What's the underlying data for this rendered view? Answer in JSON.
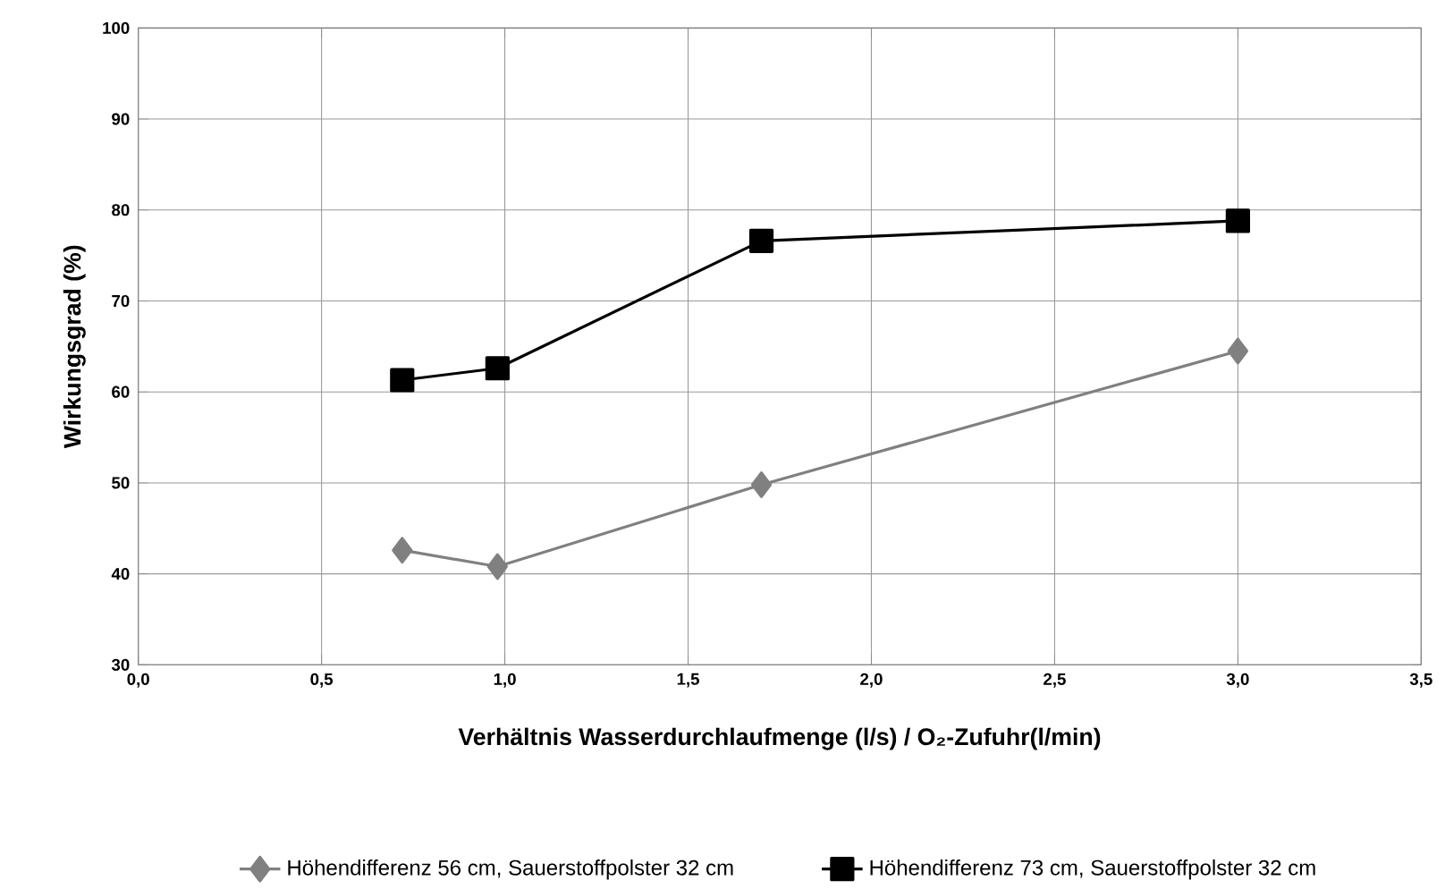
{
  "chart_data": {
    "type": "line",
    "xlabel": "Verhältnis Wasserdurchlaufmenge (l/s) / O₂-Zufuhr(l/min)",
    "ylabel": "Wirkungsgrad (%)",
    "xlim": [
      0,
      3.5
    ],
    "ylim": [
      30,
      100
    ],
    "xticks": [
      {
        "value": 0,
        "label": "0,0"
      },
      {
        "value": 0.5,
        "label": "0,5"
      },
      {
        "value": 1,
        "label": "1,0"
      },
      {
        "value": 1.5,
        "label": "1,5"
      },
      {
        "value": 2,
        "label": "2,0"
      },
      {
        "value": 2.5,
        "label": "2,5"
      },
      {
        "value": 3,
        "label": "3,0"
      },
      {
        "value": 3.5,
        "label": "3,5"
      }
    ],
    "yticks": [
      30,
      40,
      50,
      60,
      70,
      80,
      90,
      100
    ],
    "grid": true,
    "legend": "bottom",
    "series": [
      {
        "name": "Höhendifferenz 56 cm, Sauerstoffpolster 32 cm",
        "color": "#808080",
        "marker": "diamond",
        "x": [
          0.72,
          0.98,
          1.7,
          3.0
        ],
        "values": [
          42.6,
          40.8,
          49.8,
          64.5
        ]
      },
      {
        "name": "Höhendifferenz 73 cm, Sauerstoffpolster 32 cm",
        "color": "#000000",
        "marker": "square",
        "x": [
          0.72,
          0.98,
          1.7,
          3.0
        ],
        "values": [
          61.3,
          62.6,
          76.6,
          78.8
        ]
      }
    ]
  }
}
